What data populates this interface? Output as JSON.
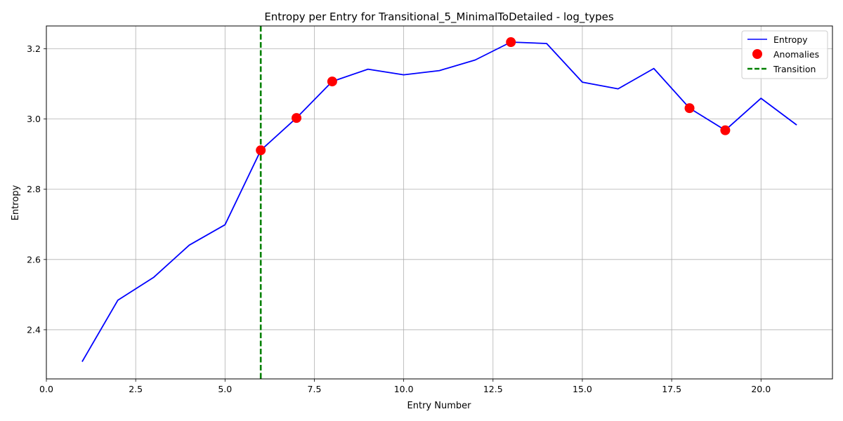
{
  "chart_data": {
    "type": "line",
    "title": "Entropy per Entry for Transitional_5_MinimalToDetailed - log_types",
    "xlabel": "Entry Number",
    "ylabel": "Entropy",
    "xlim": [
      0,
      22
    ],
    "ylim": [
      2.26,
      3.265
    ],
    "xticks": [
      0.0,
      2.5,
      5.0,
      7.5,
      10.0,
      12.5,
      15.0,
      17.5,
      20.0
    ],
    "xtick_labels": [
      "0.0",
      "2.5",
      "5.0",
      "7.5",
      "10.0",
      "12.5",
      "15.0",
      "17.5",
      "20.0"
    ],
    "yticks": [
      2.4,
      2.6,
      2.8,
      3.0,
      3.2
    ],
    "ytick_labels": [
      "2.4",
      "2.6",
      "2.8",
      "3.0",
      "3.2"
    ],
    "grid": true,
    "legend_position": "top-right",
    "series": [
      {
        "name": "Entropy",
        "kind": "line",
        "color": "#0000ff",
        "x": [
          1,
          2,
          3,
          4,
          5,
          6,
          7,
          8,
          9,
          10,
          11,
          12,
          13,
          14,
          15,
          16,
          17,
          18,
          19,
          20,
          21
        ],
        "y": [
          2.309,
          2.484,
          2.549,
          2.641,
          2.699,
          2.911,
          3.003,
          3.107,
          3.142,
          3.126,
          3.138,
          3.168,
          3.219,
          3.215,
          3.105,
          3.086,
          3.144,
          3.031,
          2.968,
          3.059,
          2.983
        ]
      },
      {
        "name": "Anomalies",
        "kind": "scatter",
        "color": "#ff0000",
        "x": [
          6,
          7,
          8,
          13,
          18,
          19
        ],
        "y": [
          2.911,
          3.003,
          3.107,
          3.219,
          3.031,
          2.968
        ]
      },
      {
        "name": "Transition",
        "kind": "vline",
        "color": "#008000",
        "x": 6
      }
    ]
  }
}
